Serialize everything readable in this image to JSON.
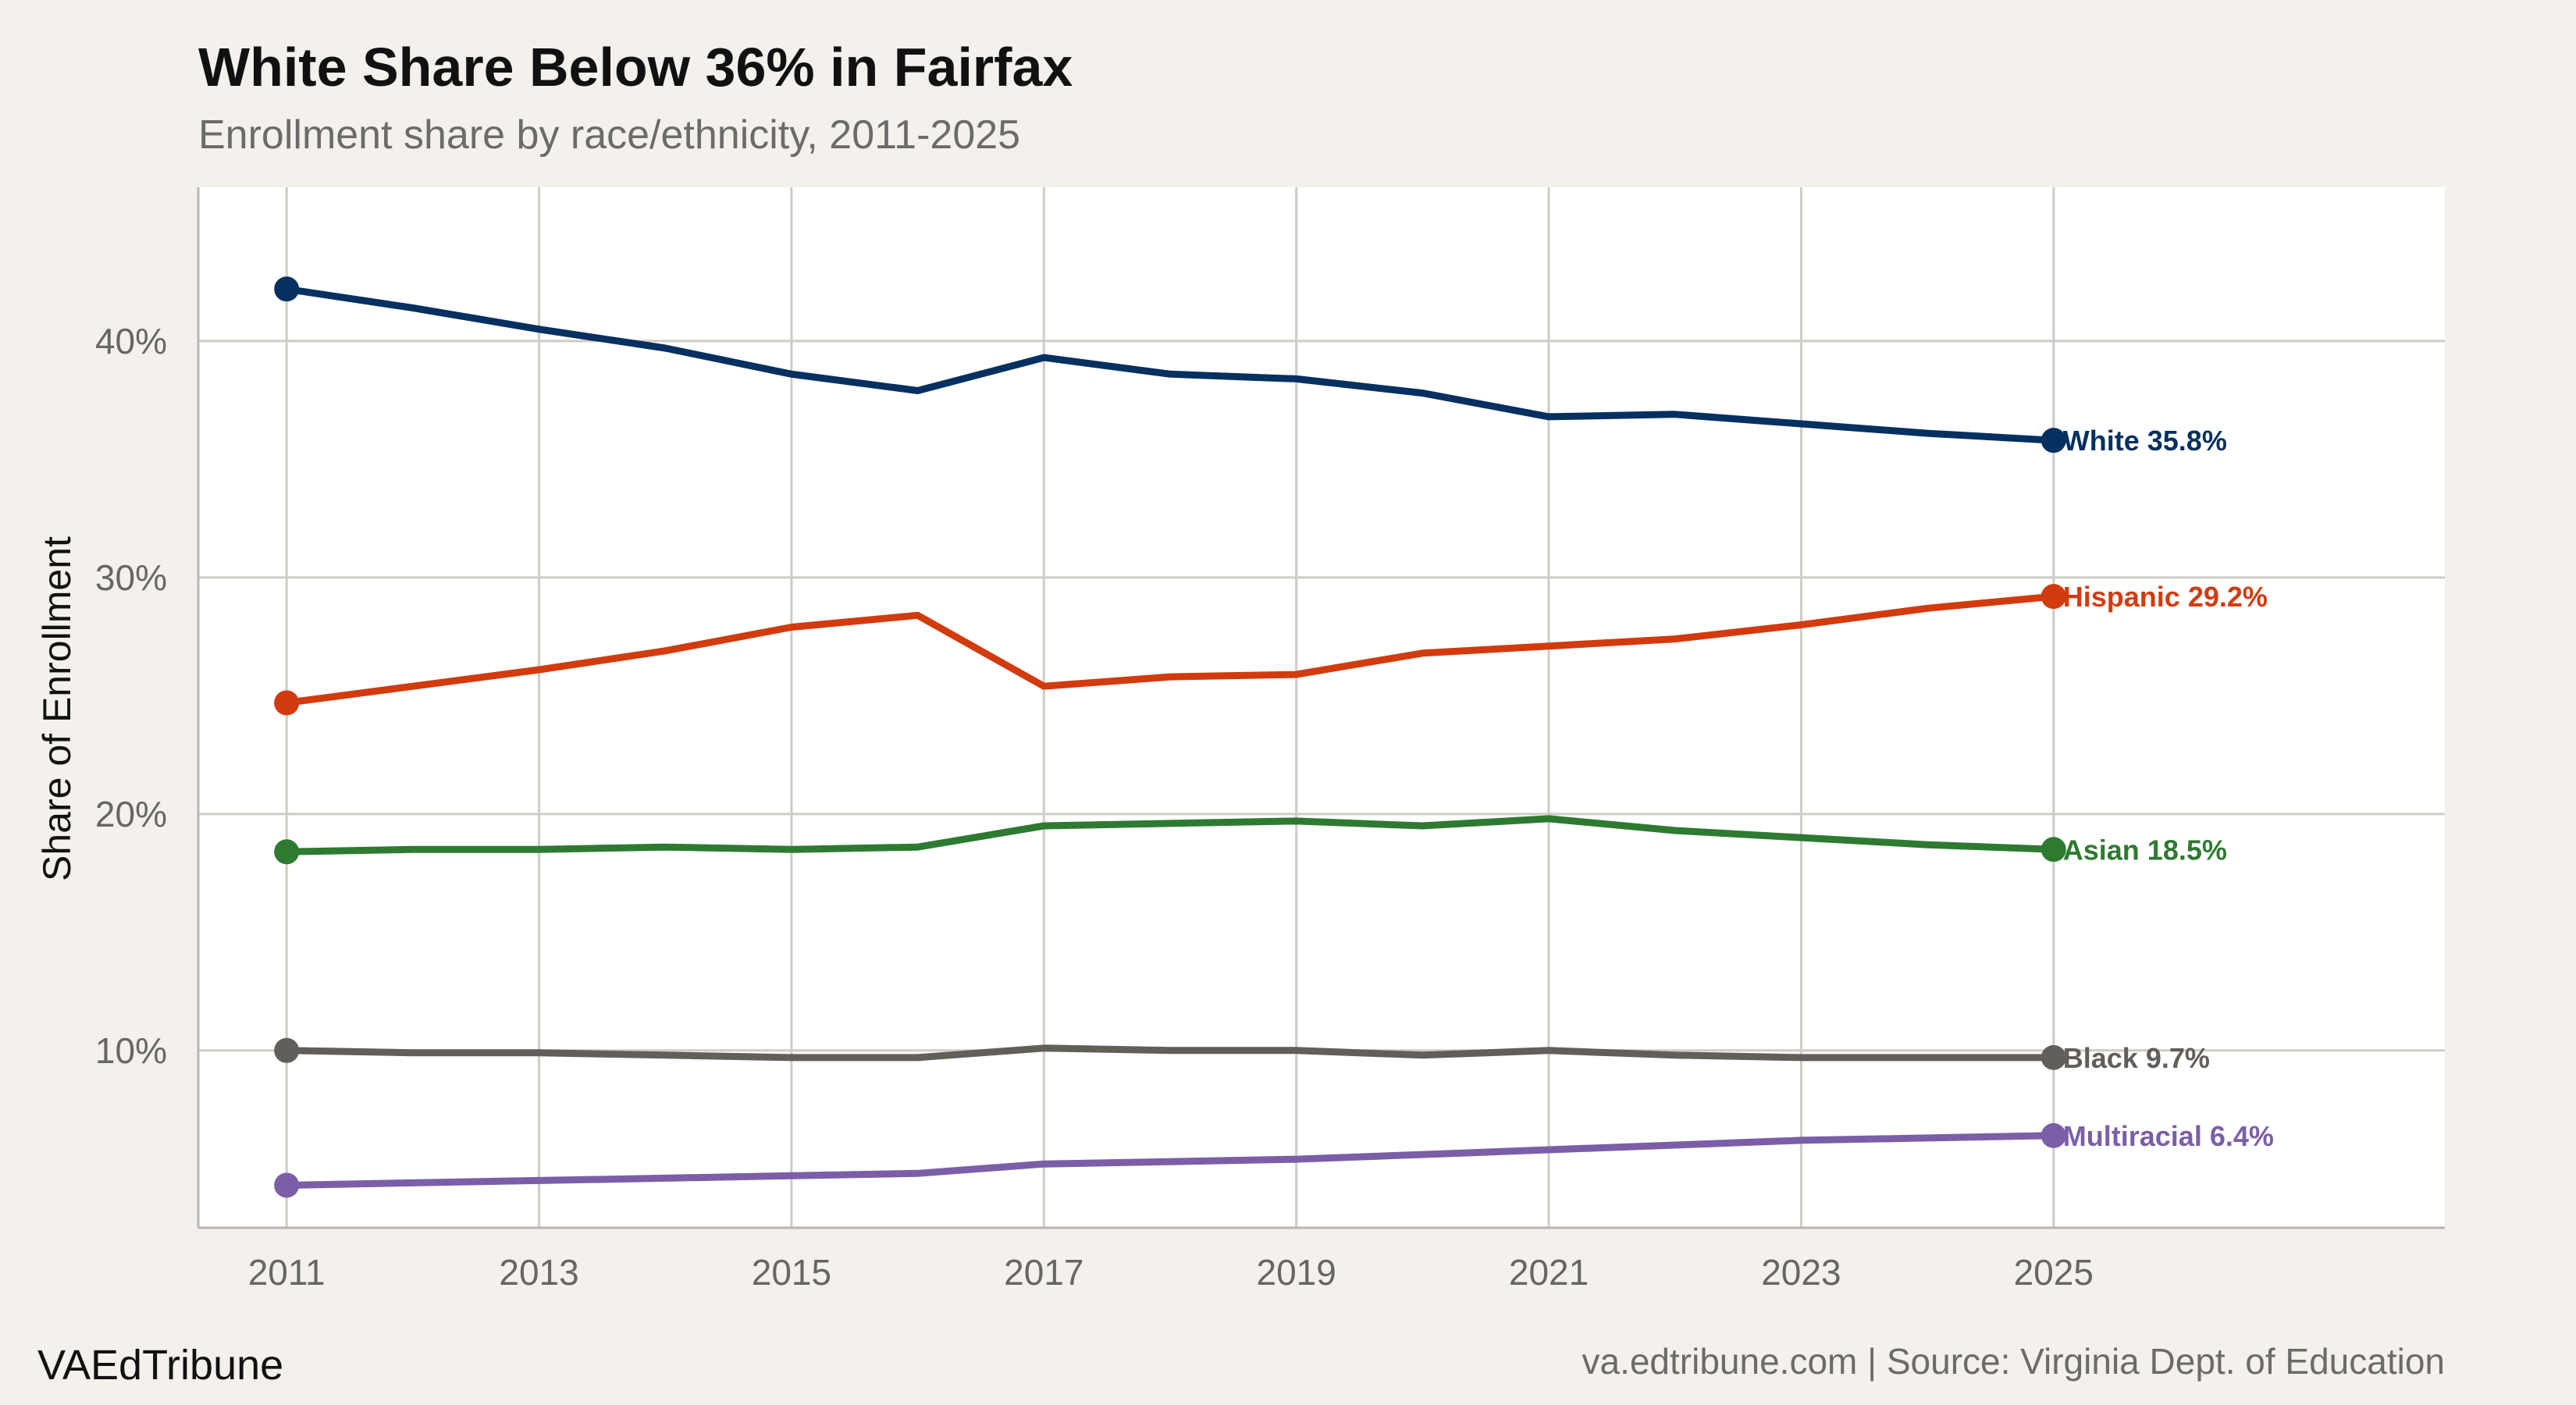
{
  "chart_data": {
    "type": "line",
    "title": "White Share Below 36% in Fairfax",
    "subtitle": "Enrollment share by race/ethnicity, 2011-2025",
    "xlabel": "",
    "ylabel": "Share of Enrollment",
    "x": [
      2011,
      2012,
      2013,
      2014,
      2015,
      2016,
      2017,
      2018,
      2019,
      2020,
      2021,
      2022,
      2023,
      2024,
      2025
    ],
    "xticks": [
      2011,
      2013,
      2015,
      2017,
      2019,
      2021,
      2023,
      2025
    ],
    "xtick_labels": [
      "2011",
      "2013",
      "2015",
      "2017",
      "2019",
      "2021",
      "2023",
      "2025"
    ],
    "xlim": [
      2010.3,
      2028.1
    ],
    "yticks": [
      10,
      20,
      30,
      40
    ],
    "ytick_labels": [
      "10%",
      "20%",
      "30%",
      "40%"
    ],
    "ylim": [
      2.5,
      46.5
    ],
    "grid": true,
    "series": [
      {
        "name": "White",
        "color": "#05305f",
        "end_label": "White 35.8%",
        "values": [
          42.2,
          41.4,
          40.5,
          39.7,
          38.6,
          37.9,
          39.3,
          38.6,
          38.4,
          37.8,
          36.8,
          36.9,
          36.5,
          36.1,
          35.8
        ]
      },
      {
        "name": "Hispanic",
        "color": "#d23b0e",
        "end_label": "Hispanic 29.2%",
        "values": [
          24.7,
          25.4,
          26.1,
          26.9,
          27.9,
          28.4,
          25.4,
          25.8,
          25.9,
          26.8,
          27.1,
          27.4,
          28.0,
          28.7,
          29.2
        ]
      },
      {
        "name": "Asian",
        "color": "#2e7a31",
        "end_label": "Asian 18.5%",
        "values": [
          18.4,
          18.5,
          18.5,
          18.6,
          18.5,
          18.6,
          19.5,
          19.6,
          19.7,
          19.5,
          19.8,
          19.3,
          19.0,
          18.7,
          18.5
        ]
      },
      {
        "name": "Black",
        "color": "#625e59",
        "end_label": "Black 9.7%",
        "values": [
          10.0,
          9.9,
          9.9,
          9.8,
          9.7,
          9.7,
          10.1,
          10.0,
          10.0,
          9.8,
          10.0,
          9.8,
          9.7,
          9.7,
          9.7
        ]
      },
      {
        "name": "Multiracial",
        "color": "#7b5ea7",
        "end_label": "Multiracial 6.4%",
        "values": [
          4.3,
          4.4,
          4.5,
          4.6,
          4.7,
          4.8,
          5.2,
          5.3,
          5.4,
          5.6,
          5.8,
          6.0,
          6.2,
          6.3,
          6.4
        ]
      }
    ]
  },
  "footer": {
    "brand": "VAEdTribune",
    "credit": "va.edtribune.com | Source: Virginia Dept. of Education"
  },
  "colors": {
    "background": "#f4f1ec",
    "panel": "#ffffff",
    "grid": "#cfcbc5",
    "axis": "#b9b5b0"
  }
}
